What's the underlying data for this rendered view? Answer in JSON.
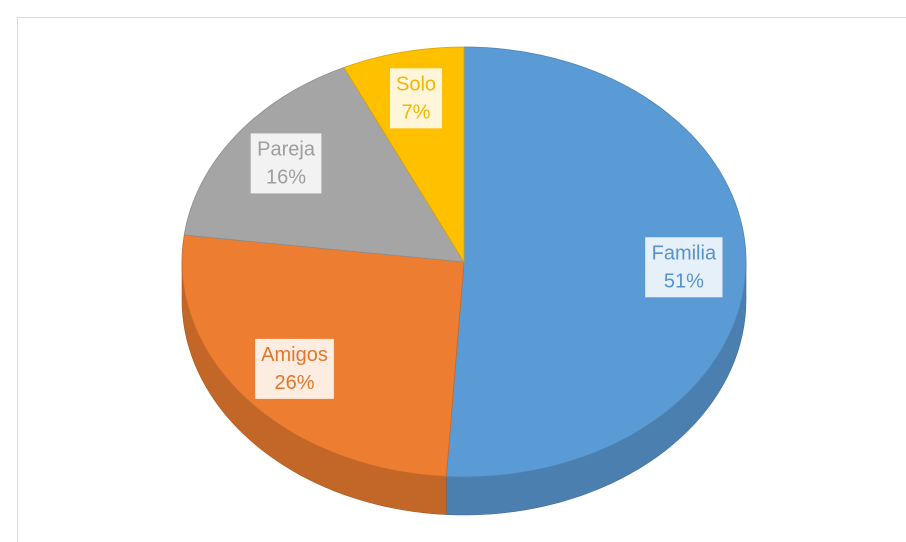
{
  "chart_data": {
    "type": "pie",
    "categories": [
      "Familia",
      "Amigos",
      "Pareja",
      "Solo"
    ],
    "values": [
      51,
      26,
      16,
      7
    ],
    "value_labels": [
      "51%",
      "26%",
      "16%",
      "7%"
    ],
    "colors": [
      "#5b9bd5",
      "#ed7d31",
      "#a5a5a5",
      "#ffc000"
    ]
  }
}
